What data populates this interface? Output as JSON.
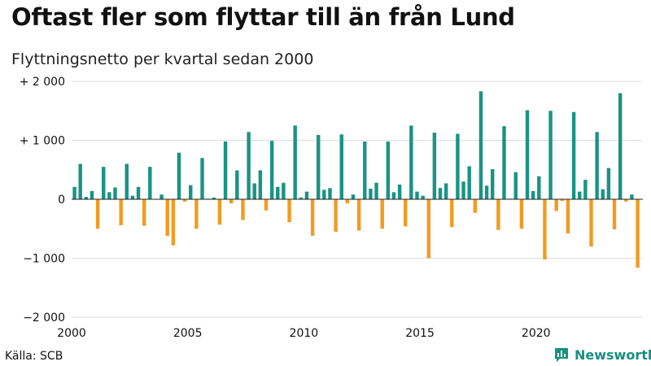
{
  "header": {
    "title": "Oftast fler som flyttar till än från Lund",
    "subtitle": "Flyttningsnetto per kvartal sedan 2000"
  },
  "footer": {
    "source": "Källa: SCB",
    "brand": "Newsworthy",
    "brand_icon": "bar-chart-speech-bubble-icon"
  },
  "colors": {
    "positive": "#1a9383",
    "negative": "#f29b21",
    "grid": "#dddddd",
    "zero_line": "#222222",
    "brand": "#16907f"
  },
  "chart_data": {
    "type": "bar",
    "title": "Oftast fler som flyttar till än från Lund",
    "subtitle": "Flyttningsnetto per kvartal sedan 2000",
    "xlabel": "",
    "ylabel": "",
    "ylim": [
      -2000,
      2000
    ],
    "yticks": [
      {
        "value": 2000,
        "label": "+ 2 000"
      },
      {
        "value": 1000,
        "label": "+ 1 000"
      },
      {
        "value": 0,
        "label": "0"
      },
      {
        "value": -1000,
        "label": "−1 000"
      },
      {
        "value": -2000,
        "label": "−2 000"
      }
    ],
    "xticks": [
      {
        "year": 2000,
        "label": "2000"
      },
      {
        "year": 2005,
        "label": "2005"
      },
      {
        "year": 2010,
        "label": "2010"
      },
      {
        "year": 2015,
        "label": "2015"
      },
      {
        "year": 2020,
        "label": "2020"
      }
    ],
    "first_period": "2000 Q1",
    "grid": true,
    "legend": "none",
    "values": [
      210,
      600,
      40,
      140,
      -500,
      550,
      120,
      200,
      -440,
      600,
      60,
      210,
      -450,
      550,
      -5,
      80,
      -620,
      -780,
      790,
      -40,
      240,
      -500,
      700,
      10,
      30,
      -430,
      980,
      -70,
      490,
      -350,
      1140,
      270,
      490,
      -190,
      990,
      210,
      280,
      -390,
      1250,
      30,
      130,
      -620,
      1090,
      160,
      190,
      -550,
      1100,
      -70,
      80,
      -530,
      980,
      180,
      280,
      -500,
      980,
      120,
      250,
      -460,
      1250,
      130,
      60,
      -1000,
      1130,
      190,
      270,
      -470,
      1110,
      300,
      560,
      -230,
      1830,
      230,
      510,
      -520,
      1240,
      10,
      460,
      -500,
      1510,
      140,
      390,
      -1020,
      1500,
      -200,
      -30,
      -580,
      1480,
      130,
      330,
      -800,
      1140,
      170,
      530,
      -510,
      1800,
      -40,
      80,
      -1160
    ]
  }
}
